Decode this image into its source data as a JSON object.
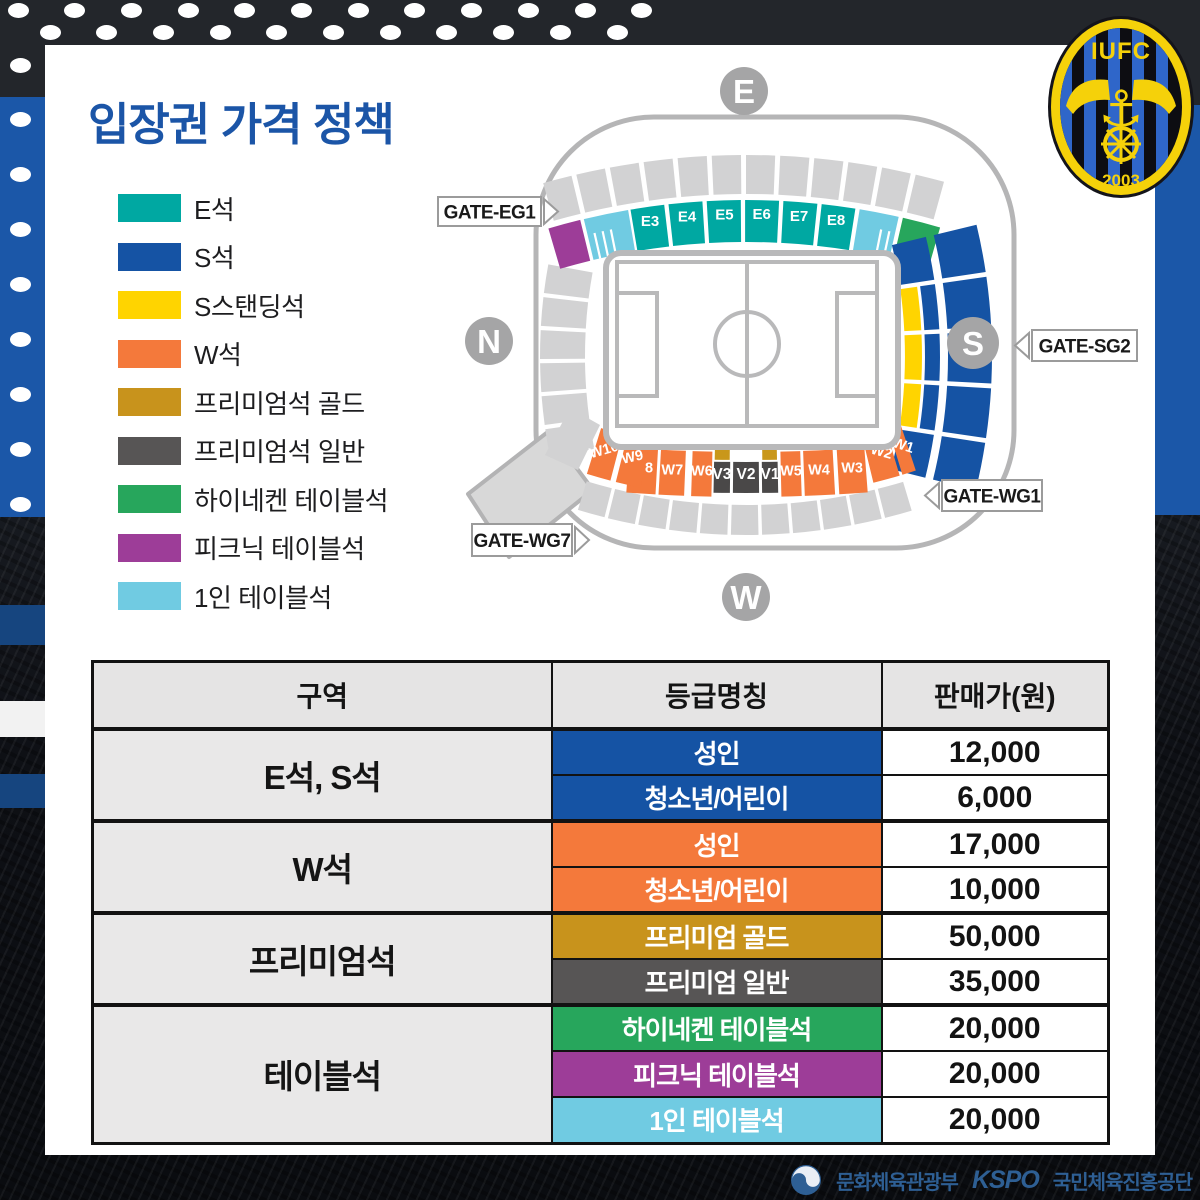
{
  "page": {
    "title": "입장권 가격 정책"
  },
  "colors": {
    "accent_title": "#1b55a7",
    "e_seat": "#00a8a2",
    "s_seat": "#1553a4",
    "s_standing": "#ffd400",
    "w_seat": "#f4793b",
    "premium_gold": "#c8931c",
    "premium_normal": "#575555",
    "heineken": "#27a65c",
    "picnic": "#9d3d98",
    "single_table": "#70cbe2",
    "gray_section": "#d2d2d3",
    "v_section": "#4a4848",
    "gold_cap": "#c9971a",
    "ring": "#b5b5b6",
    "badge": "#a5a5a6",
    "stripe_blue": "#1b57a8"
  },
  "legend": {
    "items": [
      {
        "label": "E석",
        "color": "#00a8a2"
      },
      {
        "label": "S석",
        "color": "#1553a4"
      },
      {
        "label": "S스탠딩석",
        "color": "#ffd400"
      },
      {
        "label": "W석",
        "color": "#f4793b"
      },
      {
        "label": "프리미엄석 골드",
        "color": "#c8931c"
      },
      {
        "label": "프리미엄석 일반",
        "color": "#575555"
      },
      {
        "label": "하이네켄 테이블석",
        "color": "#27a65c"
      },
      {
        "label": "피크닉 테이블석",
        "color": "#9d3d98"
      },
      {
        "label": "1인 테이블석",
        "color": "#70cbe2"
      }
    ]
  },
  "stadium": {
    "badges": {
      "east": "E",
      "north": "N",
      "south": "S",
      "west": "W"
    },
    "gates": {
      "eg1": "GATE-EG1",
      "sg2": "GATE-SG2",
      "wg1": "GATE-WG1",
      "wg7": "GATE-WG7"
    },
    "e_sections": [
      "E3",
      "E4",
      "E5",
      "E6",
      "E7",
      "E8"
    ],
    "w_sections": [
      "W10",
      "W9",
      "W8",
      "W7",
      "W6",
      "W5",
      "W4",
      "W3",
      "W2",
      "W1"
    ],
    "v_sections": [
      "V3",
      "V2",
      "V1"
    ]
  },
  "table": {
    "headers": [
      "구역",
      "등급명칭",
      "판매가(원)"
    ],
    "groups": [
      {
        "zone": "E석, S석",
        "rows": [
          {
            "grade": "성인",
            "color": "#1553a4",
            "price": "12,000"
          },
          {
            "grade": "청소년/어린이",
            "color": "#1553a4",
            "price": "6,000"
          }
        ]
      },
      {
        "zone": "W석",
        "rows": [
          {
            "grade": "성인",
            "color": "#f4793b",
            "price": "17,000"
          },
          {
            "grade": "청소년/어린이",
            "color": "#f4793b",
            "price": "10,000"
          }
        ]
      },
      {
        "zone": "프리미엄석",
        "rows": [
          {
            "grade": "프리미엄 골드",
            "color": "#c8931c",
            "price": "50,000"
          },
          {
            "grade": "프리미엄 일반",
            "color": "#575555",
            "price": "35,000"
          }
        ]
      },
      {
        "zone": "테이블석",
        "rows": [
          {
            "grade": "하이네켄 테이블석",
            "color": "#27a65c",
            "price": "20,000"
          },
          {
            "grade": "피크닉 테이블석",
            "color": "#9d3d98",
            "price": "20,000"
          },
          {
            "grade": "1인 테이블석",
            "color": "#70cbe2",
            "price": "20,000"
          }
        ]
      }
    ]
  },
  "logo": {
    "club": "IUFC",
    "year": "2003"
  },
  "footer": {
    "ministry": "문화체육관광부",
    "kspo": "KSPO",
    "kspo_full": "국민체육진흥공단"
  }
}
